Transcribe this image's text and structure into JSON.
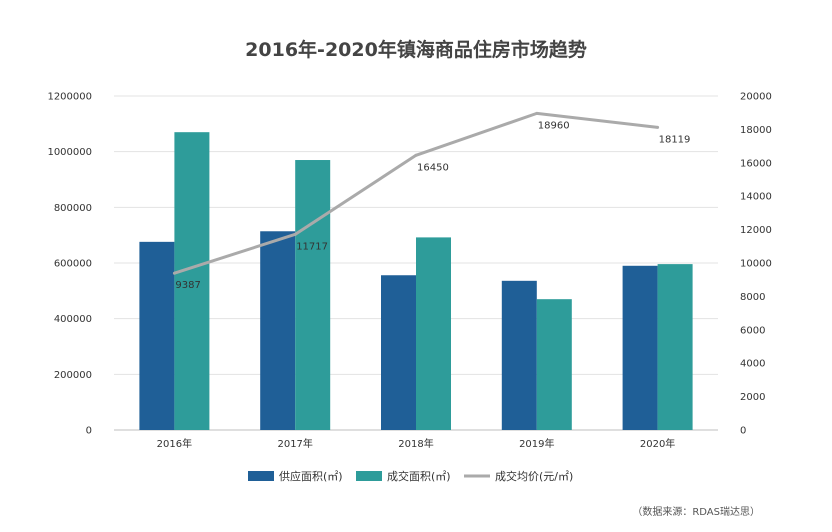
{
  "chart_data": {
    "type": "bar",
    "title": "2016年-2020年镇海商品住房市场趋势",
    "categories": [
      "2016年",
      "2017年",
      "2018年",
      "2019年",
      "2020年"
    ],
    "series": [
      {
        "name": "供应面积(㎡)",
        "type": "bar",
        "axis": "left",
        "color": "#1f5f97",
        "values": [
          676000,
          714000,
          556000,
          536000,
          590000
        ]
      },
      {
        "name": "成交面积(㎡)",
        "type": "bar",
        "axis": "left",
        "color": "#2e9c9a",
        "values": [
          1070000,
          970000,
          692000,
          470000,
          596000
        ]
      },
      {
        "name": "成交均价(元/㎡)",
        "type": "line",
        "axis": "right",
        "color": "#aaaaaa",
        "values": [
          9387,
          11717,
          16450,
          18960,
          18119
        ],
        "labels": [
          "9387",
          "11717",
          "16450",
          "18960",
          "18119"
        ]
      }
    ],
    "y_left": {
      "min": 0,
      "max": 1200000,
      "ticks": [
        "0",
        "200000",
        "400000",
        "600000",
        "800000",
        "1000000",
        "1200000"
      ]
    },
    "y_right": {
      "min": 0,
      "max": 20000,
      "ticks": [
        "0",
        "2000",
        "4000",
        "6000",
        "8000",
        "10000",
        "12000",
        "14000",
        "16000",
        "18000",
        "20000"
      ]
    },
    "grid": true,
    "legend": "bottom"
  },
  "source": "（数据来源：RDAS瑞达思）"
}
